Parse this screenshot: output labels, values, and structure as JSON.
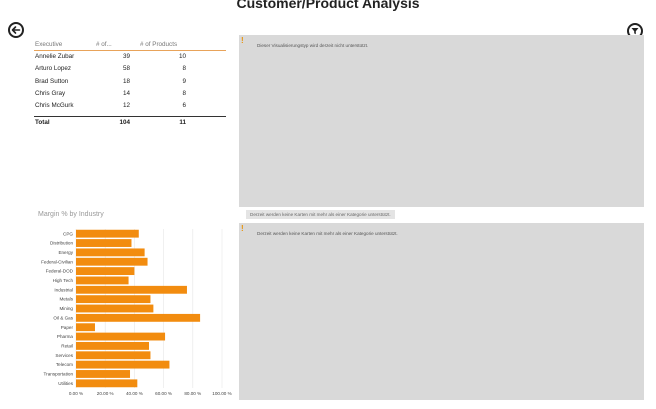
{
  "header": {
    "title": "Customer/Product Analysis",
    "back_icon": "back-arrow-icon",
    "filter_icon": "filter-icon"
  },
  "table": {
    "columns": [
      "Executive",
      "# of...",
      "# of Products"
    ],
    "rows": [
      {
        "executive": "Annelie Zubar",
        "count": "39",
        "products": "10"
      },
      {
        "executive": "Arturo Lopez",
        "count": "58",
        "products": "8"
      },
      {
        "executive": "Brad Sutton",
        "count": "18",
        "products": "9"
      },
      {
        "executive": "Chris Gray",
        "count": "14",
        "products": "8"
      },
      {
        "executive": "Chris McGurk",
        "count": "12",
        "products": "6"
      }
    ],
    "total": {
      "label": "Total",
      "count": "104",
      "products": "11"
    }
  },
  "panels": {
    "top_message": "Dieser Visualisierungstyp wird derzeit nicht unterstützt.",
    "tooltip": "Derzeit werden keine Karten mit mehr als einer Kategorie unterstützt.",
    "bottom_message": "Derzeit werden keine Karten mit mehr als einer Kategorie unterstützt."
  },
  "colors": {
    "bar": "#f28c0f",
    "accent": "#e8a35a",
    "panel": "#d9d9d9"
  },
  "chart_data": {
    "type": "bar",
    "orientation": "horizontal",
    "title": "Margin % by Industry",
    "categories": [
      "CPG",
      "Distribution",
      "Energy",
      "Federal-Civilian",
      "Federal-DOD",
      "High Tech",
      "Industrial",
      "Metals",
      "Mining",
      "Oil & Gas",
      "Paper",
      "Pharma",
      "Retail",
      "Services",
      "Telecom",
      "Transportation",
      "Utilities"
    ],
    "values": [
      43,
      38,
      47,
      49,
      40,
      36,
      76,
      51,
      53,
      85,
      13,
      61,
      50,
      51,
      64,
      37,
      42
    ],
    "ticks": [
      "0.00 %",
      "20.00 %",
      "40.00 %",
      "60.00 %",
      "80.00 %",
      "100.00 %"
    ],
    "xlim": [
      0,
      100
    ],
    "grid": true
  }
}
